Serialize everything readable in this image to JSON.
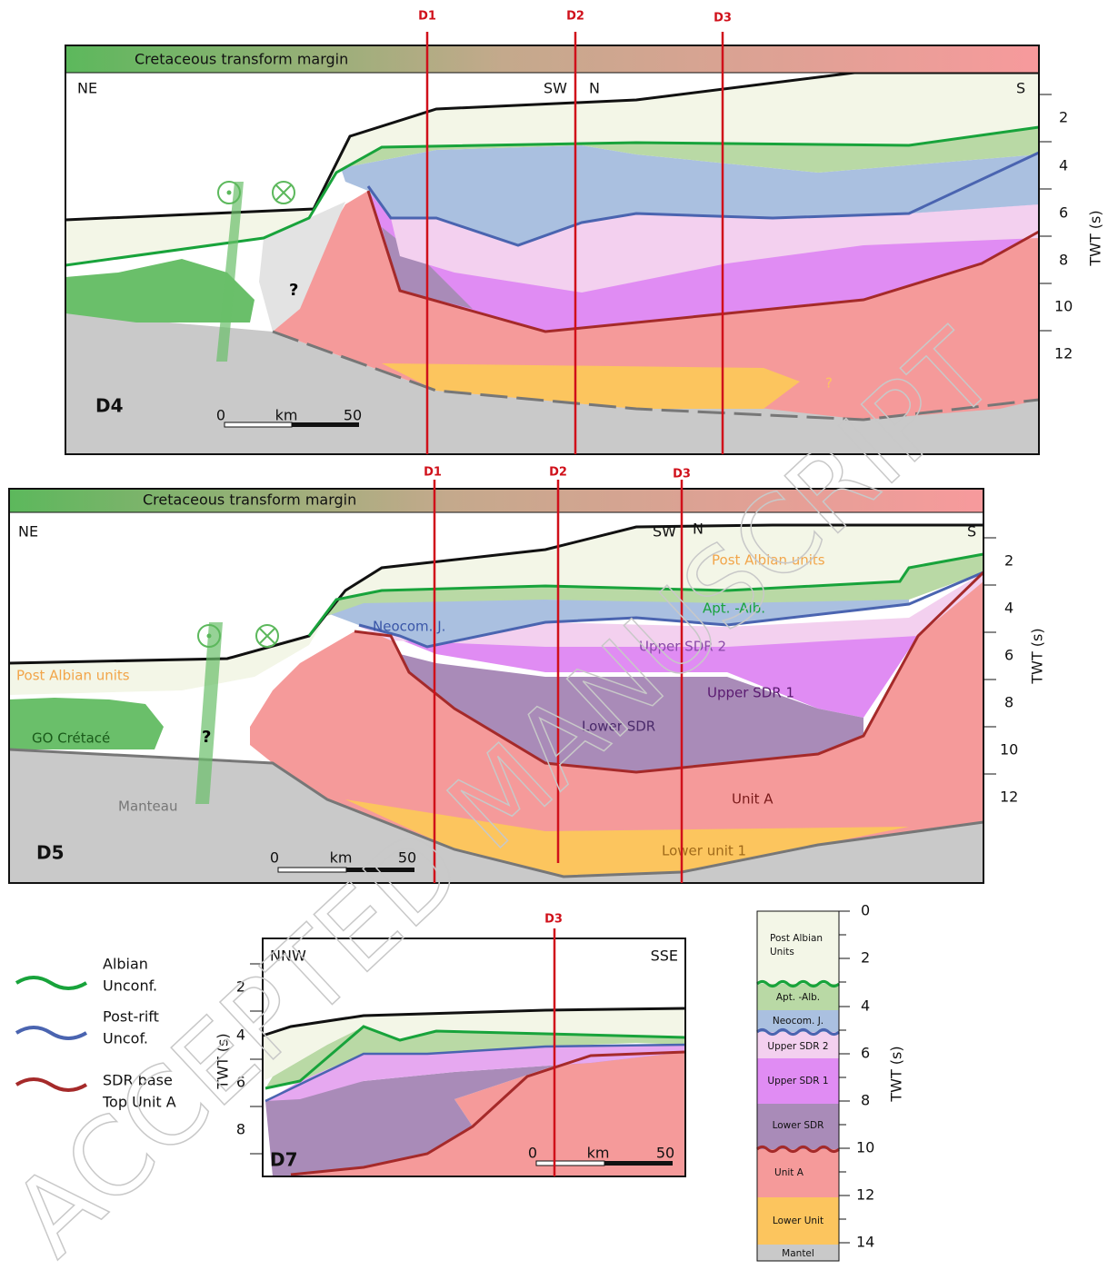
{
  "watermark": "ACCEPTED MANUSCRIPT",
  "panels": [
    {
      "label": "D4",
      "banner": "Cretaceous transform margin",
      "directions": [
        "NE",
        "SW",
        "N",
        "S"
      ],
      "axis_title": "TWT (s)",
      "ticks": [
        2,
        4,
        6,
        8,
        10,
        12
      ],
      "sections": [
        "D1",
        "D2",
        "D3"
      ],
      "scale": [
        "0",
        "km",
        "50"
      ],
      "queries": [
        "?",
        "?"
      ]
    },
    {
      "label": "D5",
      "banner": "Cretaceous transform margin",
      "directions": [
        "NE",
        "SW",
        "N",
        "S"
      ],
      "axis_title": "TWT (s)",
      "ticks": [
        2,
        4,
        6,
        8,
        10,
        12
      ],
      "sections": [
        "D1",
        "D2",
        "D3"
      ],
      "scale": [
        "0",
        "km",
        "50"
      ],
      "queries": [
        "?"
      ],
      "units": [
        "Post Albian units",
        "Apt. -Alb.",
        "Neocom. J.",
        "Upper SDR 2",
        "Upper SDR 1",
        "Lower SDR",
        "Unit A",
        "Lower unit 1",
        "Post Albian units",
        "GO Crétacé",
        "Manteau"
      ]
    },
    {
      "label": "D7",
      "directions": [
        "NNW",
        "SSE"
      ],
      "axis_title": "TWT (s)",
      "ticks": [
        2,
        4,
        6,
        8
      ],
      "sections": [
        "D3"
      ],
      "scale": [
        "0",
        "km",
        "50"
      ]
    }
  ],
  "legend": [
    {
      "label": [
        "Albian",
        "Unconf."
      ]
    },
    {
      "label": [
        "Post-rift",
        "Uncof."
      ]
    },
    {
      "label": [
        "SDR base",
        "Top Unit A"
      ]
    }
  ],
  "column": {
    "axis_title": "TWT (s)",
    "ticks": [
      0,
      2,
      4,
      6,
      8,
      10,
      12,
      14
    ],
    "units": [
      [
        "Post Albian",
        "Units"
      ],
      [
        "Apt. -Alb."
      ],
      [
        "Neocom. J."
      ],
      [
        "Upper SDR 2"
      ],
      [
        "Upper SDR 1"
      ],
      [
        "Lower SDR"
      ],
      [
        "Unit A"
      ],
      [
        "Lower Unit"
      ],
      [
        "Mantel"
      ]
    ]
  }
}
